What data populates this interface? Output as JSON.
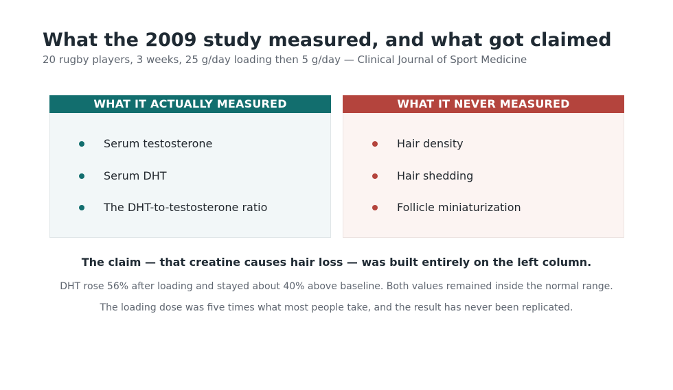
{
  "header": {
    "title": "What the 2009 study measured, and what got claimed",
    "subtitle": "20 rugby players, 3 weeks, 25 g/day loading then 5 g/day — Clinical Journal of Sport Medicine"
  },
  "columns": {
    "measured": {
      "heading": "WHAT IT ACTUALLY MEASURED",
      "color": "#126e6e",
      "items": [
        "Serum testosterone",
        "Serum DHT",
        "The DHT-to-testosterone ratio"
      ]
    },
    "not_measured": {
      "heading": "WHAT IT NEVER MEASURED",
      "color": "#b4443d",
      "items": [
        "Hair density",
        "Hair shedding",
        "Follicle miniaturization"
      ]
    }
  },
  "footer": {
    "claim": "The claim — that creatine causes hair loss — was built entirely on the left column.",
    "notes": [
      "DHT rose 56% after loading and stayed about 40% above baseline. Both values remained inside the normal range.",
      "The loading dose was five times what most people take, and the result has never been replicated."
    ]
  }
}
